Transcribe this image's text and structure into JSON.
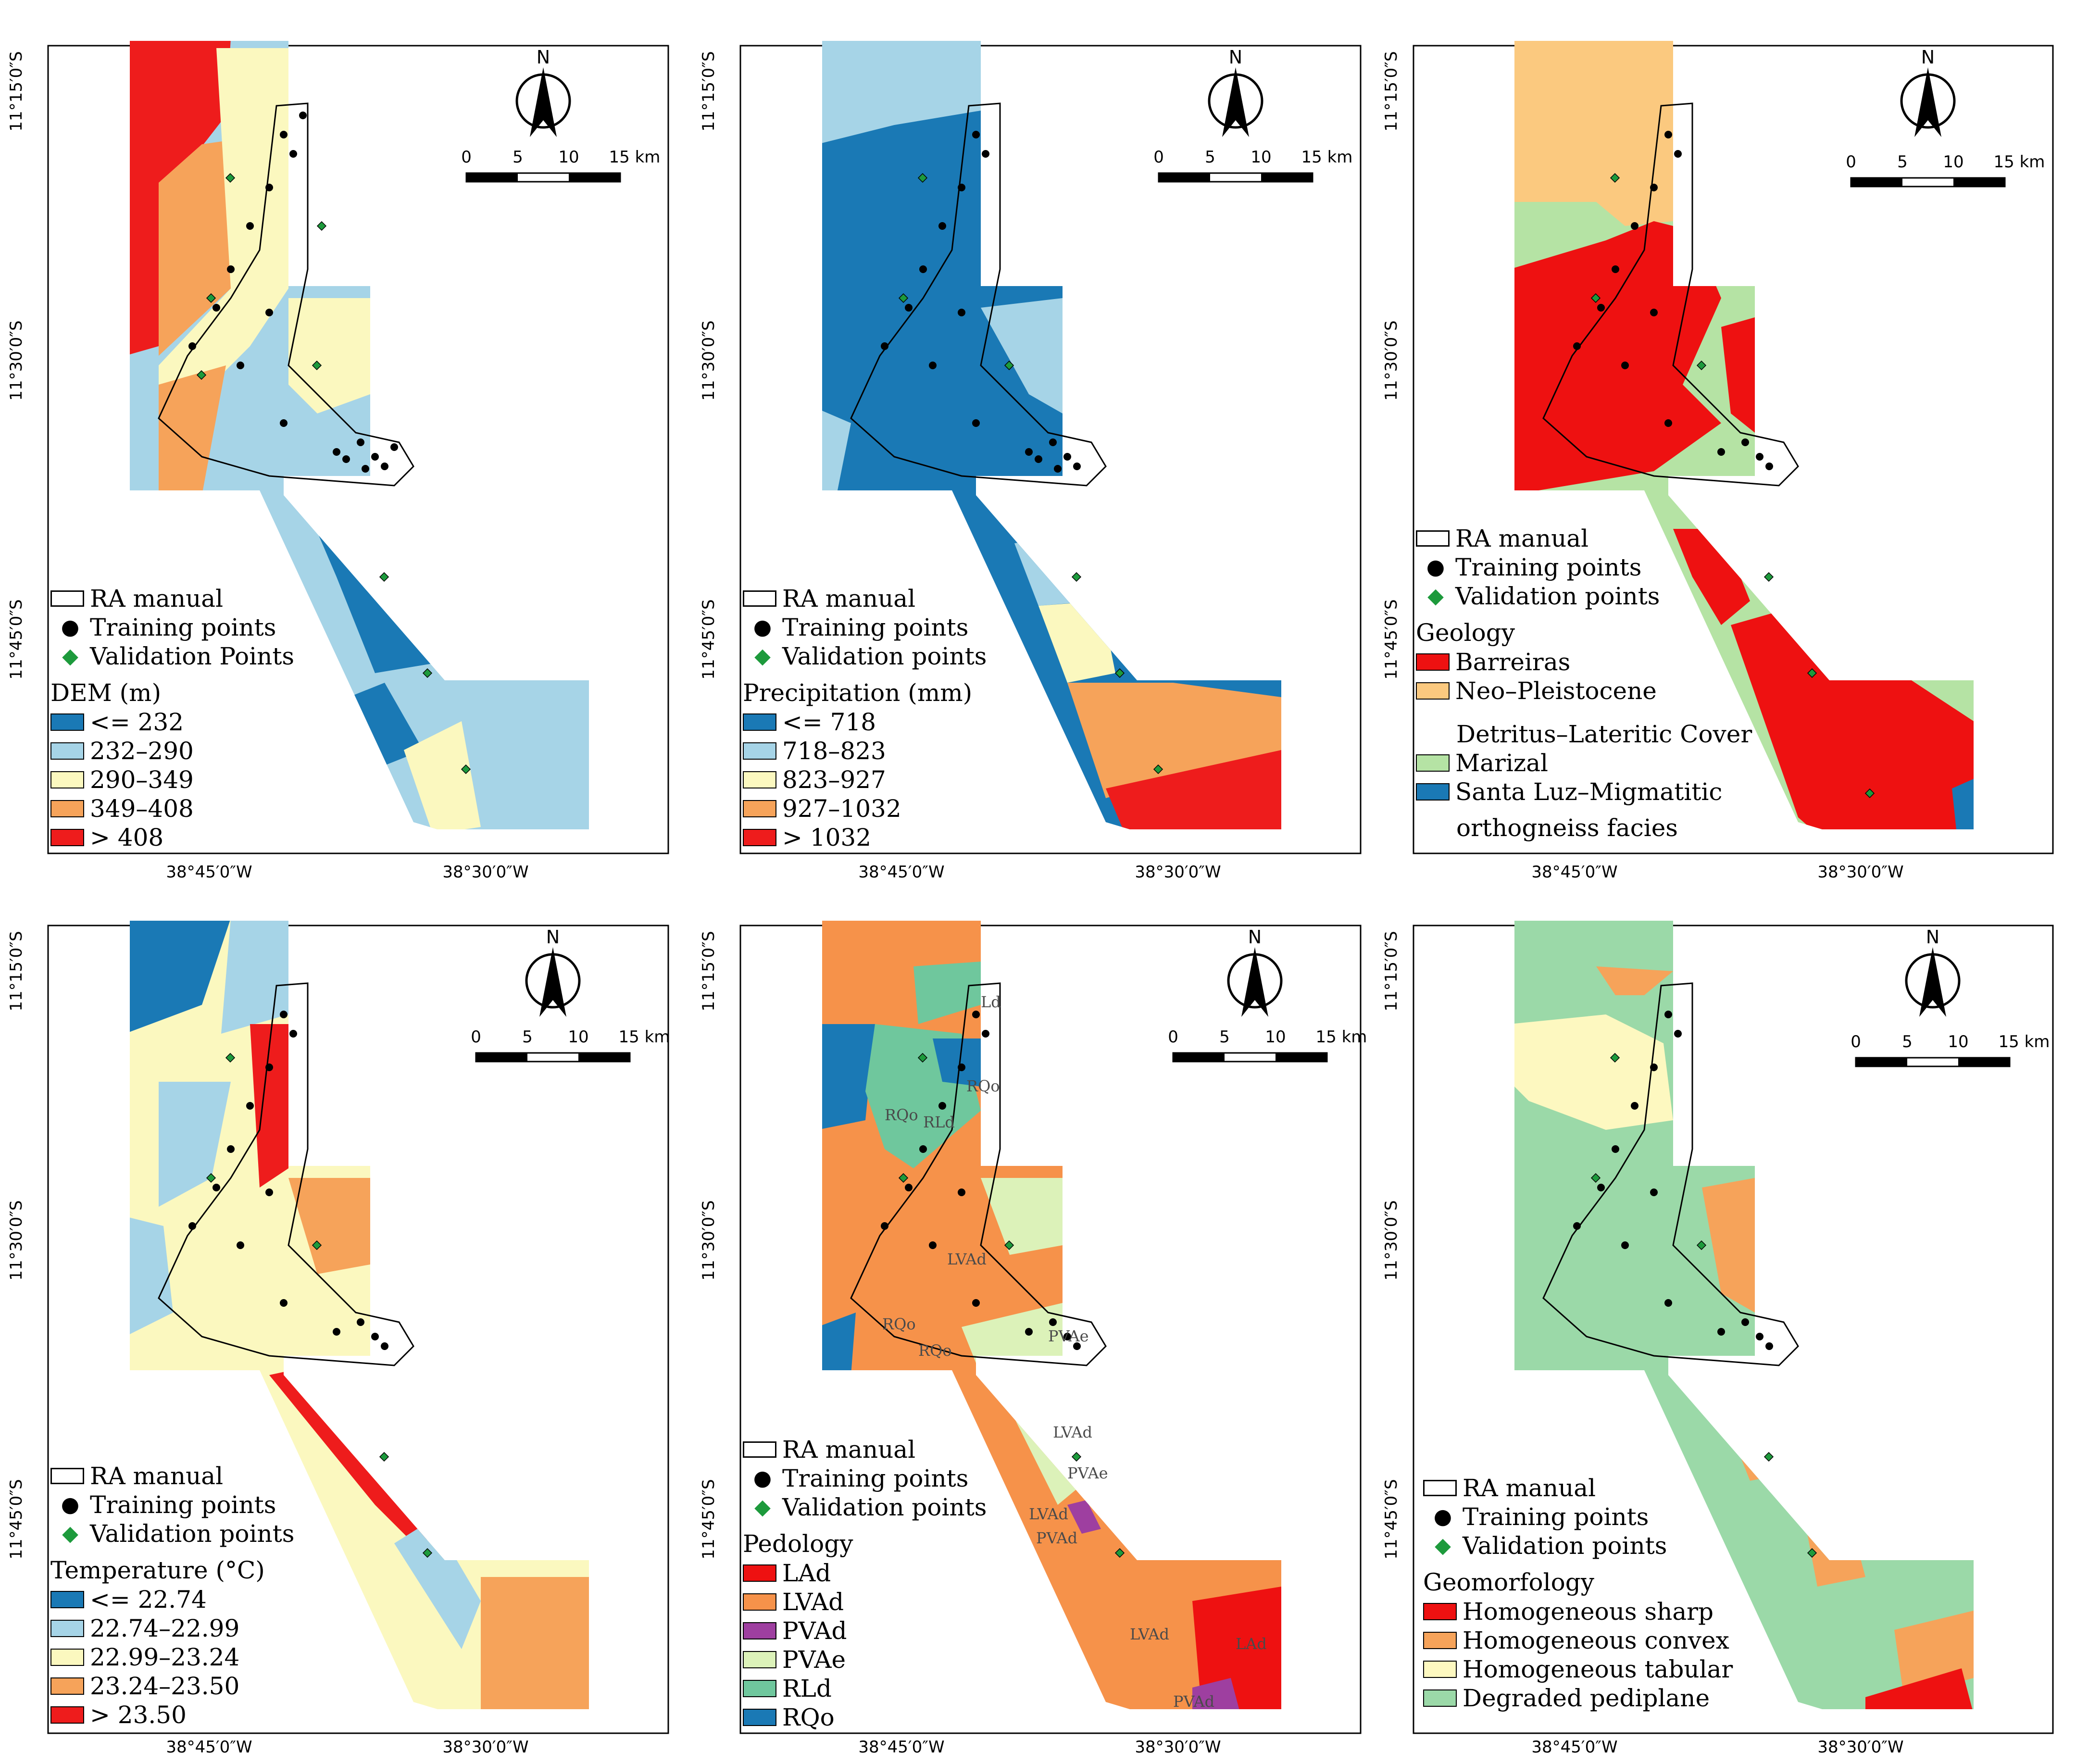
{
  "common": {
    "lat_labels": [
      "11°15′0″S",
      "11°30′0″S",
      "11°45′0″S"
    ],
    "lon_labels": [
      "38°45′0″W",
      "38°30′0″W"
    ],
    "north": "N",
    "scale_ticks": [
      "0",
      "5",
      "10",
      "15 km"
    ],
    "ra_label": "RA manual",
    "training_label": "Training points"
  },
  "panels": [
    {
      "id": "dem",
      "title": "DEM (m)",
      "validation_label": "Validation Points",
      "classes": [
        {
          "label": "<= 232",
          "color": "#1a79b5"
        },
        {
          "label": "232–290",
          "color": "#a6d4e7"
        },
        {
          "label": "290–349",
          "color": "#fbf8bf"
        },
        {
          "label": "349–408",
          "color": "#f6a35a"
        },
        {
          "label": "> 408",
          "color": "#ee1c1c"
        }
      ]
    },
    {
      "id": "precip",
      "title": "Precipitation (mm)",
      "validation_label": "Validation points",
      "classes": [
        {
          "label": "<= 718",
          "color": "#1a79b5"
        },
        {
          "label": "718–823",
          "color": "#a6d4e7"
        },
        {
          "label": "823–927",
          "color": "#fbf8bf"
        },
        {
          "label": "927–1032",
          "color": "#f6a35a"
        },
        {
          "label": "> 1032",
          "color": "#ee1c1c"
        }
      ]
    },
    {
      "id": "geology",
      "title": "Geology",
      "validation_label": "Validation points",
      "classes": [
        {
          "label": "Barreiras",
          "color": "#ee1111"
        },
        {
          "label": "Neo–Pleistocene",
          "color": "#fbc97f"
        },
        {
          "label": "Detritus–Lateritic Cover",
          "color": null
        },
        {
          "label": "Marizal",
          "color": "#b5e3a4"
        },
        {
          "label": "Santa Luz–Migmatitic",
          "color": "#1a79b5"
        },
        {
          "label": "orthogneiss facies",
          "color": null
        }
      ]
    },
    {
      "id": "temp",
      "title": "Temperature (°C)",
      "validation_label": "Validation points",
      "classes": [
        {
          "label": "<= 22.74",
          "color": "#1a79b5"
        },
        {
          "label": "22.74–22.99",
          "color": "#a6d4e7"
        },
        {
          "label": "22.99–23.24",
          "color": "#fbf8bf"
        },
        {
          "label": "23.24–23.50",
          "color": "#f6a35a"
        },
        {
          "label": "> 23.50",
          "color": "#ee1c1c"
        }
      ]
    },
    {
      "id": "pedology",
      "title": "Pedology",
      "validation_label": "Validation points",
      "classes": [
        {
          "label": "LAd",
          "color": "#ee1111"
        },
        {
          "label": "LVAd",
          "color": "#f6924a"
        },
        {
          "label": "PVAd",
          "color": "#9e3fa0"
        },
        {
          "label": "PVAe",
          "color": "#dcf2b9"
        },
        {
          "label": "RLd",
          "color": "#6fc79d"
        },
        {
          "label": "RQo",
          "color": "#1a79b5"
        }
      ],
      "map_labels": [
        "Ld",
        "RQo",
        "RLd",
        "RQo",
        "LVAd",
        "RQo",
        "RQo",
        "PVAe",
        "LVAd",
        "PVAe",
        "LVAd",
        "PVAd",
        "LVAd",
        "LAd",
        "PVAd"
      ]
    },
    {
      "id": "geomorph",
      "title": "Geomorfology",
      "validation_label": "Validation points",
      "classes": [
        {
          "label": "Homogeneous sharp",
          "color": "#ee1111"
        },
        {
          "label": "Homogeneous convex",
          "color": "#f6a35a"
        },
        {
          "label": "Homogeneous tabular",
          "color": "#fdf8c0"
        },
        {
          "label": "Degraded pediplane",
          "color": "#9bd9a8"
        }
      ]
    }
  ]
}
